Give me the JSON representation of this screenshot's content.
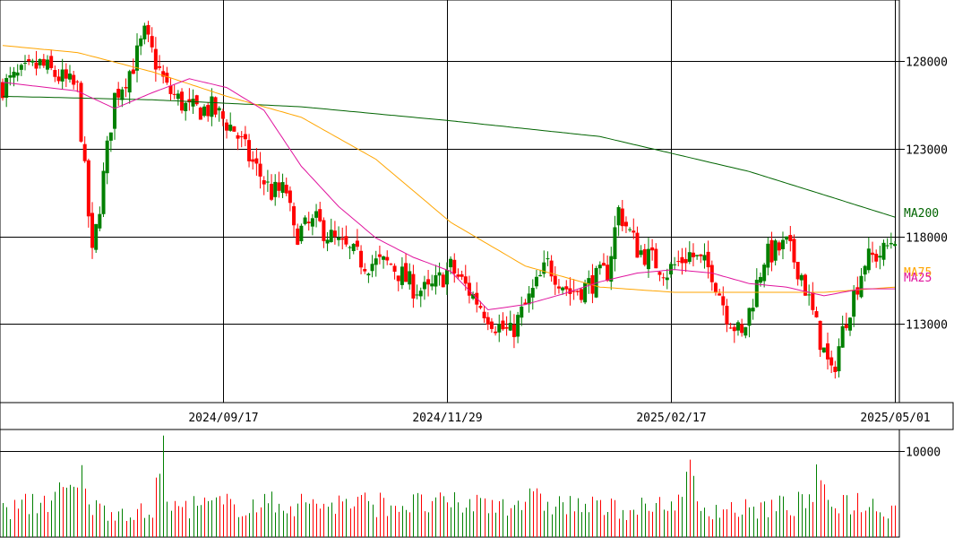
{
  "chart_data": [
    {
      "type": "candlestick",
      "title": "",
      "y_ticks": [
        128000,
        123000,
        118000,
        113000
      ],
      "y_range": [
        108500,
        131500
      ],
      "x_ticks": [
        "2024/09/17",
        "2024/11/29",
        "2025/02/17",
        "2025/05/01"
      ],
      "x_tick_sessions": [
        59,
        119,
        179,
        239
      ],
      "sessions": 240,
      "grid": true,
      "ohlc_anchors": {
        "session": [
          0,
          10,
          20,
          24,
          30,
          35,
          38,
          44,
          50,
          56,
          62,
          66,
          72,
          76,
          78,
          84,
          90,
          97,
          104,
          110,
          114,
          120,
          126,
          132,
          136,
          140,
          146,
          152,
          156,
          162,
          165,
          170,
          178,
          184,
          190,
          194,
          198,
          204,
          210,
          214,
          218,
          222,
          226,
          231,
          236,
          239
        ],
        "close": [
          126600,
          127800,
          126400,
          116800,
          126000,
          127800,
          129500,
          126400,
          125200,
          125300,
          124100,
          122500,
          120500,
          120600,
          118100,
          118800,
          117500,
          116500,
          116400,
          115100,
          114800,
          116200,
          114600,
          113000,
          112400,
          114000,
          116400,
          114800,
          115100,
          116000,
          119500,
          117300,
          116000,
          117000,
          116000,
          113600,
          112200,
          116800,
          117500,
          115800,
          112800,
          110000,
          113400,
          116600,
          117100,
          118100
        ]
      },
      "moving_averages": [
        {
          "name": "MA200",
          "color": "#006400",
          "session": [
            0,
            40,
            80,
            120,
            160,
            200,
            239
          ],
          "values": [
            126000,
            125800,
            125400,
            124600,
            123700,
            121700,
            119100
          ]
        },
        {
          "name": "MA75",
          "color": "#ffa500",
          "session": [
            0,
            20,
            40,
            60,
            80,
            100,
            120,
            140,
            160,
            180,
            200,
            220,
            239
          ],
          "values": [
            128900,
            128500,
            127400,
            126000,
            124800,
            122400,
            118800,
            116300,
            115100,
            114800,
            114800,
            114800,
            115100
          ]
        },
        {
          "name": "MA25",
          "color": "#e0149e",
          "session": [
            0,
            20,
            30,
            40,
            50,
            60,
            70,
            80,
            90,
            100,
            110,
            120,
            130,
            140,
            150,
            160,
            170,
            180,
            190,
            200,
            210,
            220,
            230,
            239
          ],
          "values": [
            126800,
            126300,
            125300,
            126200,
            127000,
            126500,
            125200,
            122000,
            119700,
            117900,
            116800,
            116000,
            113800,
            114100,
            114700,
            115400,
            115900,
            116100,
            115900,
            115300,
            115100,
            114600,
            115000,
            115000
          ]
        }
      ],
      "ma_labels": [
        "MA200",
        "MA75",
        "MA25"
      ]
    },
    {
      "type": "bar",
      "title": "",
      "y_ticks": [
        10000
      ],
      "y_range": [
        0,
        12500
      ],
      "volume_anchors": {
        "session": [
          0,
          20,
          22,
          24,
          40,
          43,
          44,
          60,
          80,
          100,
          120,
          140,
          160,
          180,
          184,
          186,
          200,
          215,
          218,
          220,
          229,
          239
        ],
        "values": [
          3200,
          5800,
          8000,
          3600,
          3000,
          11800,
          3800,
          4000,
          4200,
          4200,
          4000,
          4600,
          3600,
          3600,
          9000,
          3800,
          3400,
          4200,
          6600,
          4800,
          4400,
          3600
        ]
      }
    }
  ]
}
